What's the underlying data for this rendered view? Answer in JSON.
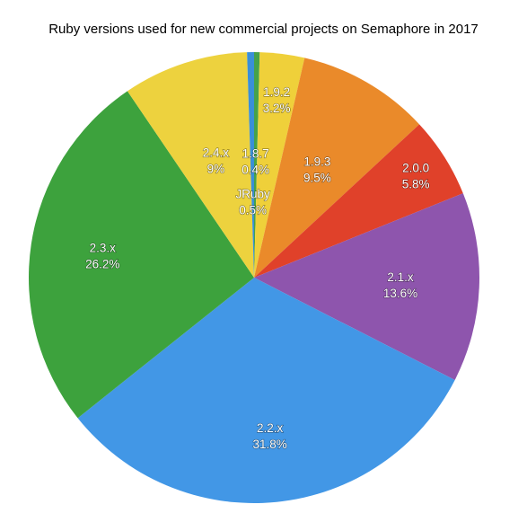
{
  "chart_data": {
    "type": "pie",
    "title": "Ruby versions used for new commercial projects on Semaphore in 2017",
    "slices": [
      {
        "label": "1.8.7",
        "value": 0.4,
        "display": "0.4%",
        "color": "#46a24a"
      },
      {
        "label": "1.9.2",
        "value": 3.2,
        "display": "3.2%",
        "color": "#efd03a"
      },
      {
        "label": "1.9.3",
        "value": 9.5,
        "display": "9.5%",
        "color": "#ea8a2a"
      },
      {
        "label": "2.0.0",
        "value": 5.8,
        "display": "5.8%",
        "color": "#e0412a"
      },
      {
        "label": "2.1.x",
        "value": 13.6,
        "display": "13.6%",
        "color": "#8e55ad"
      },
      {
        "label": "2.2.x",
        "value": 31.8,
        "display": "31.8%",
        "color": "#4297e6"
      },
      {
        "label": "2.3.x",
        "value": 26.2,
        "display": "26.2%",
        "color": "#3da23d"
      },
      {
        "label": "2.4.x",
        "value": 9,
        "display": "9%",
        "color": "#edd23e"
      },
      {
        "label": "JRuby",
        "value": 0.5,
        "display": "0.5%",
        "color": "#3a8fd8"
      }
    ]
  }
}
